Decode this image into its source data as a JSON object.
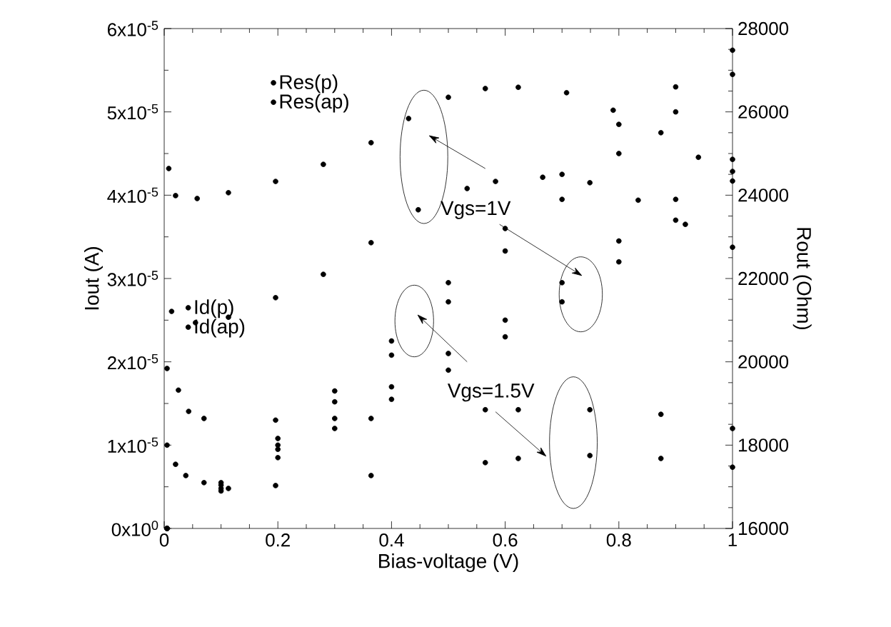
{
  "chart_data": {
    "type": "scatter",
    "xlabel": "Bias-voltage (V)",
    "ylabel": "Iout (A)",
    "y2label": "Rout (Ohm)",
    "xlim": [
      0,
      1
    ],
    "xticks": [
      0,
      0.2,
      0.4,
      0.6,
      0.8,
      1
    ],
    "ylim": [
      0,
      6e-05
    ],
    "yticks": [
      {
        "value": 0,
        "label": "0x10$^{0}$"
      },
      {
        "value": 1e-05,
        "label": "1x10$^{-5}$"
      },
      {
        "value": 2e-05,
        "label": "2x10$^{-5}$"
      },
      {
        "value": 3e-05,
        "label": "3x10$^{-5}$"
      },
      {
        "value": 4e-05,
        "label": "4x10$^{-5}$"
      },
      {
        "value": 5e-05,
        "label": "5x10$^{-5}$"
      },
      {
        "value": 6e-05,
        "label": "6x10$^{-5}$"
      }
    ],
    "y2lim": [
      16000,
      28000
    ],
    "y2ticks": [
      16000,
      18000,
      20000,
      22000,
      24000,
      26000,
      28000
    ],
    "marker": "circle",
    "legend": "top left",
    "annotations": [
      "Vgs=1V",
      "Vgs=1.5V"
    ],
    "series": [
      {
        "name": "Res(p)",
        "color": "#000000",
        "axis": "y2",
        "x": [
          0.013,
          0.055,
          0.113,
          0.196,
          0.28,
          0.364,
          0.447,
          0.533,
          0.583,
          0.666,
          0.749,
          0.834,
          0.917,
          1.0
        ],
        "values": [
          21210,
          20940,
          21070,
          21540,
          22100,
          22860,
          23650,
          24160,
          24330,
          24430,
          24300,
          23880,
          23300,
          22750
        ]
      },
      {
        "name": "Res(ap)",
        "color": "#000000",
        "axis": "y2",
        "x": [
          0.008,
          0.02,
          0.058,
          0.113,
          0.196,
          0.28,
          0.364,
          0.43,
          0.5,
          0.565,
          0.623,
          0.708,
          0.79,
          0.874,
          0.94,
          1.0
        ],
        "values": [
          24640,
          23990,
          23920,
          24060,
          24330,
          24740,
          25260,
          25840,
          26350,
          26560,
          26590,
          26460,
          26040,
          25500,
          24910,
          24570
        ]
      },
      {
        "color": "#000000",
        "axis": "y2",
        "x": [
          0.005,
          0.02,
          0.038,
          0.07,
          0.113,
          0.196,
          0.364,
          0.565,
          0.623,
          0.749,
          0.874,
          1.0
        ],
        "values": [
          18000,
          17540,
          17270,
          17100,
          16960,
          17030,
          17270,
          17580,
          17680,
          17750,
          17680,
          17470
        ]
      },
      {
        "color": "#000000",
        "axis": "y2",
        "x": [
          0.005,
          0.025,
          0.043,
          0.07,
          0.196,
          0.364,
          0.565,
          0.623,
          0.749,
          0.874,
          1.0
        ],
        "values": [
          19840,
          19320,
          18810,
          18640,
          18600,
          18640,
          18850,
          18850,
          18850,
          18740,
          18400
        ]
      },
      {
        "name": "Id(p)",
        "color": "#000000",
        "x": [
          0.005,
          0.1,
          0.2,
          0.3,
          0.4,
          0.5,
          0.6,
          0.7,
          0.8,
          0.9,
          1.0
        ],
        "values": [
          0,
          5.5e-06,
          1.08e-05,
          1.65e-05,
          2.25e-05,
          2.95e-05,
          3.6e-05,
          4.25e-05,
          4.85e-05,
          5.3e-05,
          5.74e-05
        ]
      },
      {
        "name": "Id(ap)",
        "color": "#000000",
        "x": [
          0.005,
          0.1,
          0.2,
          0.3,
          0.4,
          0.5,
          0.6,
          0.7,
          0.8,
          0.9,
          1.0
        ],
        "values": [
          0,
          5.2e-06,
          1e-05,
          1.52e-05,
          2.08e-05,
          2.72e-05,
          3.33e-05,
          3.95e-05,
          4.5e-05,
          5e-05,
          5.45e-05
        ]
      },
      {
        "color": "#000000",
        "x": [
          0.005,
          0.1,
          0.2,
          0.3,
          0.4,
          0.5,
          0.6,
          0.7,
          0.8,
          0.9,
          1.0
        ],
        "values": [
          0,
          4.8e-06,
          9.5e-06,
          1.32e-05,
          1.7e-05,
          2.1e-05,
          2.5e-05,
          2.95e-05,
          3.45e-05,
          3.95e-05,
          4.43e-05
        ]
      },
      {
        "color": "#000000",
        "x": [
          0.005,
          0.1,
          0.2,
          0.3,
          0.4,
          0.5,
          0.6,
          0.7,
          0.8,
          0.9,
          1.0
        ],
        "values": [
          0,
          4.5e-06,
          8.5e-06,
          1.2e-05,
          1.55e-05,
          1.9e-05,
          2.3e-05,
          2.72e-05,
          3.2e-05,
          3.7e-05,
          4.17e-05
        ]
      }
    ]
  }
}
